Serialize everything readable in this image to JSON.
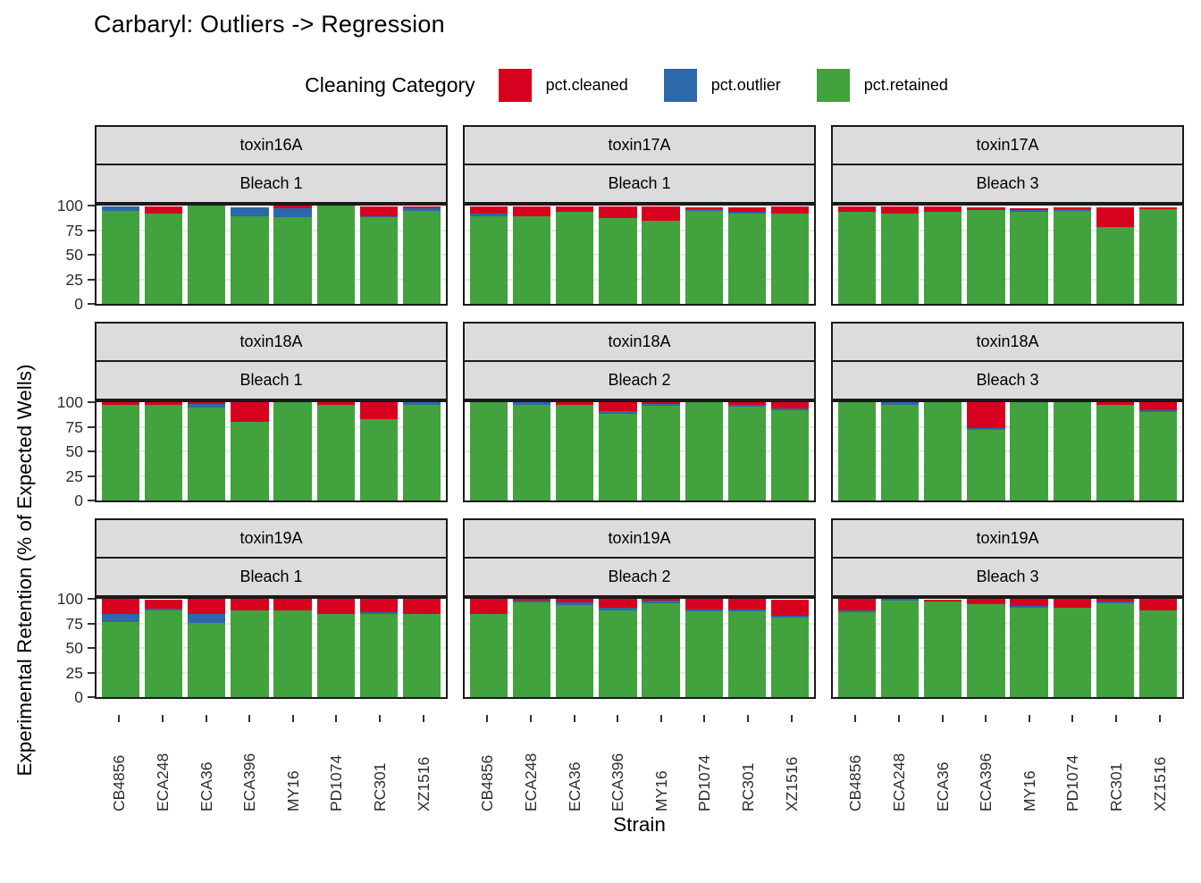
{
  "chart_data": {
    "type": "bar",
    "stacked": true,
    "title": "Carbaryl: Outliers -> Regression",
    "xlabel": "Strain",
    "ylabel": "Experimental Retention (% of Expected Wells)",
    "ylim": [
      0,
      100
    ],
    "yticks": [
      0,
      25,
      50,
      75,
      100
    ],
    "grid": "light gray major and minor horizontal lines",
    "legend": {
      "title": "Cleaning Category",
      "position": "top",
      "items": [
        {
          "label": "pct.cleaned",
          "color": "#d8001f"
        },
        {
          "label": "pct.outlier",
          "color": "#2d68a8"
        },
        {
          "label": "pct.retained",
          "color": "#42a23e"
        }
      ]
    },
    "stack_order_bottom_to_top": [
      "pct.retained",
      "pct.outlier",
      "pct.cleaned"
    ],
    "categories": [
      "CB4856",
      "ECA248",
      "ECA36",
      "ECA396",
      "MY16",
      "PD1074",
      "RC301",
      "XZ1516"
    ],
    "facet_layout": "3x3 grid, strip row 1 = toxin, strip row 2 = bleach",
    "panels": [
      {
        "facet_top": "toxin16A",
        "facet_bottom": "Bleach 1",
        "series": {
          "pct.retained": [
            95,
            91.5,
            100,
            89,
            88.5,
            100,
            88,
            94.5
          ],
          "pct.outlier": [
            4.5,
            0,
            0,
            9.5,
            9,
            0,
            1.5,
            2.5
          ],
          "pct.cleaned": [
            0,
            7.5,
            0,
            0,
            2.5,
            0,
            10,
            2.5
          ]
        }
      },
      {
        "facet_top": "toxin17A",
        "facet_bottom": "Bleach 1",
        "series": {
          "pct.retained": [
            89,
            89,
            94,
            87.5,
            84.5,
            94.5,
            91.5,
            91.5
          ],
          "pct.outlier": [
            2.5,
            0,
            0,
            0,
            0,
            1.5,
            2,
            0
          ],
          "pct.cleaned": [
            8,
            10.5,
            5.5,
            12,
            15,
            2.5,
            5,
            7.5
          ]
        }
      },
      {
        "facet_top": "toxin17A",
        "facet_bottom": "Bleach 3",
        "series": {
          "pct.retained": [
            94,
            91.5,
            94,
            95.5,
            94,
            94.5,
            78.5,
            96
          ],
          "pct.outlier": [
            0,
            0,
            0,
            0,
            1.5,
            2,
            0,
            0
          ],
          "pct.cleaned": [
            5,
            8,
            5.5,
            3,
            2,
            2,
            20,
            2.5
          ]
        }
      },
      {
        "facet_top": "toxin18A",
        "facet_bottom": "Bleach 1",
        "series": {
          "pct.retained": [
            97.5,
            97.5,
            94.5,
            80,
            100,
            97.5,
            83,
            97.5
          ],
          "pct.outlier": [
            0,
            0,
            3.5,
            0,
            0,
            0,
            0,
            2.5
          ],
          "pct.cleaned": [
            2.5,
            2.5,
            2,
            20,
            0,
            2.5,
            17,
            0
          ]
        }
      },
      {
        "facet_top": "toxin18A",
        "facet_bottom": "Bleach 2",
        "series": {
          "pct.retained": [
            100,
            97,
            97.5,
            88.5,
            96,
            100,
            95.5,
            91.5
          ],
          "pct.outlier": [
            0,
            3,
            0,
            2,
            2,
            0,
            2,
            2
          ],
          "pct.cleaned": [
            0,
            0,
            2.5,
            9.5,
            2,
            0,
            2.5,
            6.5
          ]
        }
      },
      {
        "facet_top": "toxin18A",
        "facet_bottom": "Bleach 3",
        "series": {
          "pct.retained": [
            100,
            97,
            100,
            71.5,
            100,
            100,
            97,
            90
          ],
          "pct.outlier": [
            0,
            3,
            0,
            2,
            0,
            0,
            0,
            2
          ],
          "pct.cleaned": [
            0,
            0,
            0,
            26.5,
            0,
            0,
            3,
            8
          ]
        }
      },
      {
        "facet_top": "toxin19A",
        "facet_bottom": "Bleach 1",
        "series": {
          "pct.retained": [
            76,
            88,
            75.5,
            88.5,
            88.5,
            84.5,
            84.5,
            84.5
          ],
          "pct.outlier": [
            8.5,
            2,
            9,
            0,
            0,
            0,
            2,
            0
          ],
          "pct.cleaned": [
            15.5,
            9.5,
            15.5,
            11.5,
            11.5,
            15.5,
            13.5,
            15.5
          ]
        }
      },
      {
        "facet_top": "toxin19A",
        "facet_bottom": "Bleach 2",
        "series": {
          "pct.retained": [
            84.5,
            96,
            93.5,
            88.5,
            95.5,
            87.5,
            87.5,
            81
          ],
          "pct.outlier": [
            0,
            2,
            3,
            2,
            2.5,
            1.5,
            1.5,
            2
          ],
          "pct.cleaned": [
            15.5,
            2,
            3.5,
            9.5,
            2,
            11,
            11,
            16.5
          ]
        }
      },
      {
        "facet_top": "toxin19A",
        "facet_bottom": "Bleach 3",
        "series": {
          "pct.retained": [
            86.5,
            98,
            97.5,
            94.5,
            90.5,
            90.5,
            95.5,
            88.5
          ],
          "pct.outlier": [
            2,
            2,
            0,
            0,
            2,
            0,
            2,
            0
          ],
          "pct.cleaned": [
            11.5,
            0,
            2,
            5.5,
            7.5,
            9.5,
            2.5,
            11.5
          ]
        }
      }
    ],
    "colors": {
      "pct.cleaned": "#d8001f",
      "pct.outlier": "#2d68a8",
      "pct.retained": "#42a23e",
      "strip_background": "#dcdcdc",
      "panel_border": "#1a1a1a",
      "tick_text": "#2e2e2e"
    }
  }
}
